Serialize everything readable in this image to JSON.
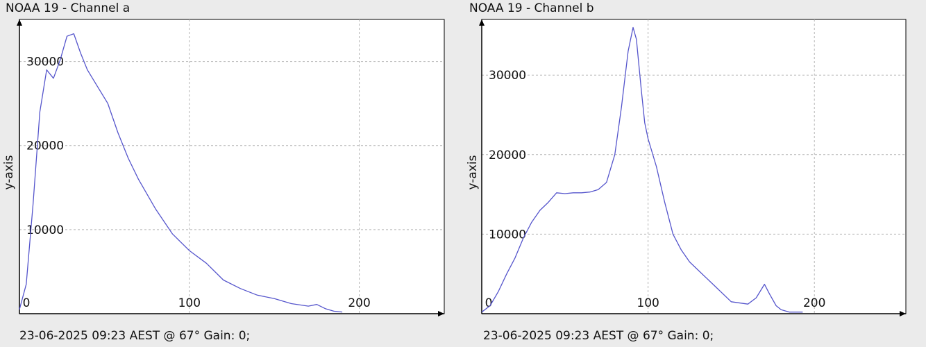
{
  "panels": [
    {
      "title": "NOAA 19 - Channel a",
      "footer": "23-06-2025 09:23 AEST @ 67° Gain: 0;"
    },
    {
      "title": "NOAA 19 - Channel b",
      "footer": "23-06-2025 09:23 AEST @ 67° Gain: 0;"
    }
  ],
  "colors": {
    "line": "#5555cc",
    "grid": "#b4b4b4",
    "axis": "#000000",
    "plot_bg": "#ffffff",
    "page_bg": "#ebebeb"
  },
  "chart_data": [
    {
      "type": "line",
      "title": "NOAA 19 - Channel a",
      "xlabel": "",
      "ylabel": "y-axis",
      "xlim": [
        0,
        250
      ],
      "ylim": [
        0,
        35000
      ],
      "x_ticks": [
        0,
        100,
        200
      ],
      "y_ticks": [
        10000,
        20000,
        30000
      ],
      "grid": true,
      "series": [
        {
          "x": [
            0,
            4,
            8,
            12,
            16,
            20,
            24,
            28,
            32,
            36,
            40,
            46,
            52,
            58,
            64,
            70,
            80,
            90,
            100,
            110,
            120,
            130,
            140,
            150,
            160,
            170,
            175,
            180,
            185,
            190
          ],
          "y": [
            500,
            3500,
            13000,
            24000,
            29000,
            28000,
            30200,
            33000,
            33300,
            31000,
            29000,
            27000,
            25000,
            21500,
            18500,
            16000,
            12500,
            9500,
            7500,
            6000,
            4000,
            3000,
            2200,
            1800,
            1200,
            900,
            1100,
            600,
            300,
            200
          ]
        }
      ]
    },
    {
      "type": "line",
      "title": "NOAA 19 - Channel b",
      "xlabel": "",
      "ylabel": "y-axis",
      "xlim": [
        0,
        255
      ],
      "ylim": [
        0,
        37000
      ],
      "x_ticks": [
        0,
        100,
        200
      ],
      "y_ticks": [
        10000,
        20000,
        30000
      ],
      "grid": true,
      "series": [
        {
          "x": [
            0,
            5,
            10,
            15,
            20,
            25,
            30,
            35,
            40,
            45,
            50,
            55,
            60,
            65,
            70,
            75,
            80,
            84,
            88,
            91,
            93,
            96,
            98,
            100,
            105,
            110,
            115,
            120,
            125,
            130,
            140,
            150,
            160,
            165,
            170,
            173,
            177,
            180,
            185,
            193
          ],
          "y": [
            200,
            1000,
            2800,
            5000,
            7000,
            9500,
            11500,
            13000,
            14000,
            15200,
            15100,
            15200,
            15200,
            15300,
            15600,
            16500,
            20000,
            26000,
            33000,
            36000,
            34500,
            28000,
            24000,
            22000,
            18500,
            14000,
            10000,
            8000,
            6500,
            5500,
            3500,
            1500,
            1200,
            2000,
            3700,
            2500,
            1000,
            500,
            200,
            200
          ]
        }
      ]
    }
  ]
}
